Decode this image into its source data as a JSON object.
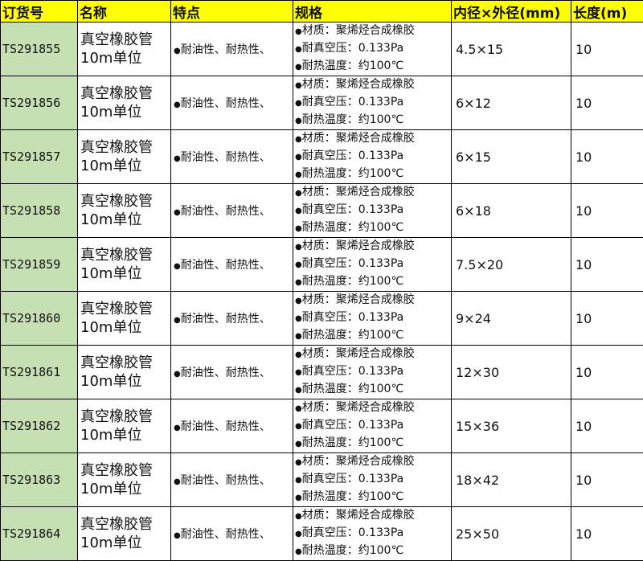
{
  "headers": [
    "订货号",
    "名称",
    "特点",
    "规格",
    "内径×外径(mm)",
    "长度(m)"
  ],
  "bullet": "●",
  "rows": [
    {
      "code": "TS291855",
      "name": [
        "真空橡胶管",
        "10m单位"
      ],
      "feature": "耐油性、耐热性、",
      "spec": [
        "材质：聚烯烃合成橡胶",
        "耐真空压：0.133Pa",
        "耐热温度：约100℃"
      ],
      "size": "4.5×15",
      "length": "10"
    },
    {
      "code": "TS291856",
      "name": [
        "真空橡胶管",
        "10m单位"
      ],
      "feature": "耐油性、耐热性、",
      "spec": [
        "材质：聚烯烃合成橡胶",
        "耐真空压：0.133Pa",
        "耐热温度：约100℃"
      ],
      "size": "6×12",
      "length": "10"
    },
    {
      "code": "TS291857",
      "name": [
        "真空橡胶管",
        "10m单位"
      ],
      "feature": "耐油性、耐热性、",
      "spec": [
        "材质：聚烯烃合成橡胶",
        "耐真空压：0.133Pa",
        "耐热温度：约100℃"
      ],
      "size": "6×15",
      "length": "10"
    },
    {
      "code": "TS291858",
      "name": [
        "真空橡胶管",
        "10m单位"
      ],
      "feature": "耐油性、耐热性、",
      "spec": [
        "材质：聚烯烃合成橡胶",
        "耐真空压：0.133Pa",
        "耐热温度：约100℃"
      ],
      "size": "6×18",
      "length": "10"
    },
    {
      "code": "TS291859",
      "name": [
        "真空橡胶管",
        "10m单位"
      ],
      "feature": "耐油性、耐热性、",
      "spec": [
        "材质：聚烯烃合成橡胶",
        "耐真空压：0.133Pa",
        "耐热温度：约100℃"
      ],
      "size": "7.5×20",
      "length": "10"
    },
    {
      "code": "TS291860",
      "name": [
        "真空橡胶管",
        "10m单位"
      ],
      "feature": "耐油性、耐热性、",
      "spec": [
        "材质：聚烯烃合成橡胶",
        "耐真空压：0.133Pa",
        "耐热温度：约100℃"
      ],
      "size": "9×24",
      "length": "10"
    },
    {
      "code": "TS291861",
      "name": [
        "真空橡胶管",
        "10m单位"
      ],
      "feature": "耐油性、耐热性、",
      "spec": [
        "材质：聚烯烃合成橡胶",
        "耐真空压：0.133Pa",
        "耐热温度：约100℃"
      ],
      "size": "12×30",
      "length": "10"
    },
    {
      "code": "TS291862",
      "name": [
        "真空橡胶管",
        "10m单位"
      ],
      "feature": "耐油性、耐热性、",
      "spec": [
        "材质：聚烯烃合成橡胶",
        "耐真空压：0.133Pa",
        "耐热温度：约100℃"
      ],
      "size": "15×36",
      "length": "10"
    },
    {
      "code": "TS291863",
      "name": [
        "真空橡胶管",
        "10m单位"
      ],
      "feature": "耐油性、耐热性、",
      "spec": [
        "材质：聚烯烃合成橡胶",
        "耐真空压：0.133Pa",
        "耐热温度：约100℃"
      ],
      "size": "18×42",
      "length": "10"
    },
    {
      "code": "TS291864",
      "name": [
        "真空橡胶管",
        "10m单位"
      ],
      "feature": "耐油性、耐热性、",
      "spec": [
        "材质：聚烯烃合成橡胶",
        "耐真空压：0.133Pa",
        "耐热温度：约100℃"
      ],
      "size": "25×50",
      "length": "10"
    }
  ],
  "colors": {
    "header_bg": "#ffff00",
    "code_bg": "#c6e0b4",
    "border": "#000000"
  }
}
